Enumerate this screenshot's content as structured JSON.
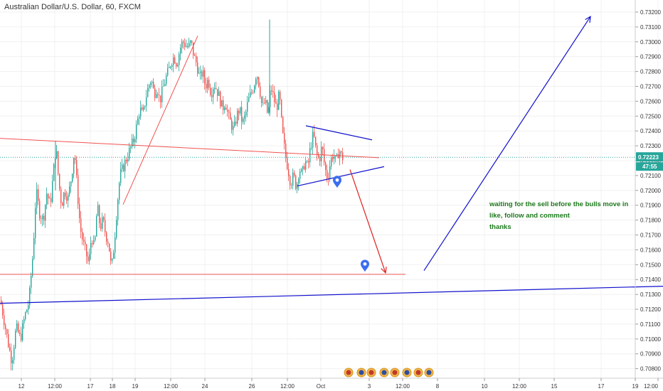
{
  "title": "Australian Dollar/U.S. Dollar, 60, FXCM",
  "note": {
    "line1": "waiting for the sell before the bulls move in",
    "line2": "like, follow and comment",
    "line3": "thanks"
  },
  "price_badge": {
    "price": "0.72223",
    "countdown": "47:55",
    "color": "#26a69a"
  },
  "colors": {
    "up": "#26a69a",
    "down": "#ef5350",
    "red_line": "#ef5350",
    "blue_line": "#1010cc",
    "arrow_red": "#e02020",
    "grid": "#f0f0f0",
    "axis": "#cccccc"
  },
  "chart_data": {
    "type": "candlestick",
    "symbol": "AUD/USD",
    "interval": "60",
    "source": "FXCM",
    "x_ticks": [
      "12",
      "12:00",
      "17",
      "18",
      "19",
      "12:00",
      "24",
      "26",
      "12:00",
      "Oct",
      "3",
      "12:00",
      "8",
      "10",
      "12:00",
      "15",
      "17",
      "19",
      "12:00"
    ],
    "y_ticks": [
      "0.73200",
      "0.73100",
      "0.73000",
      "0.72900",
      "0.72800",
      "0.72700",
      "0.72600",
      "0.72500",
      "0.72400",
      "0.72300",
      "0.72200",
      "0.72100",
      "0.72000",
      "0.71900",
      "0.71800",
      "0.71700",
      "0.71600",
      "0.71500",
      "0.71400",
      "0.71300",
      "0.71200",
      "0.71100",
      "0.71000",
      "0.70900",
      "0.70800"
    ],
    "ylim": [
      0.7076,
      0.7324
    ],
    "last_price": 0.72223,
    "close_path": [
      [
        0,
        0.7126
      ],
      [
        6,
        0.711
      ],
      [
        12,
        0.7094
      ],
      [
        16,
        0.7085
      ],
      [
        22,
        0.7108
      ],
      [
        28,
        0.71
      ],
      [
        34,
        0.7115
      ],
      [
        40,
        0.7125
      ],
      [
        46,
        0.716
      ],
      [
        50,
        0.72
      ],
      [
        55,
        0.7185
      ],
      [
        60,
        0.718
      ],
      [
        65,
        0.7198
      ],
      [
        70,
        0.719
      ],
      [
        74,
        0.721
      ],
      [
        78,
        0.723
      ],
      [
        82,
        0.7205
      ],
      [
        86,
        0.719
      ],
      [
        90,
        0.72
      ],
      [
        95,
        0.7195
      ],
      [
        100,
        0.721
      ],
      [
        104,
        0.7228
      ],
      [
        108,
        0.72
      ],
      [
        112,
        0.7175
      ],
      [
        116,
        0.7165
      ],
      [
        120,
        0.7158
      ],
      [
        124,
        0.715
      ],
      [
        128,
        0.717
      ],
      [
        132,
        0.716
      ],
      [
        136,
        0.719
      ],
      [
        140,
        0.7175
      ],
      [
        144,
        0.718
      ],
      [
        148,
        0.717
      ],
      [
        152,
        0.7165
      ],
      [
        156,
        0.7146
      ],
      [
        160,
        0.7165
      ],
      [
        164,
        0.719
      ],
      [
        168,
        0.721
      ],
      [
        172,
        0.7215
      ],
      [
        176,
        0.722
      ],
      [
        180,
        0.7225
      ],
      [
        184,
        0.723
      ],
      [
        188,
        0.7235
      ],
      [
        192,
        0.7245
      ],
      [
        196,
        0.7255
      ],
      [
        200,
        0.725
      ],
      [
        204,
        0.7262
      ],
      [
        208,
        0.727
      ],
      [
        212,
        0.7275
      ],
      [
        216,
        0.7265
      ],
      [
        220,
        0.727
      ],
      [
        224,
        0.726
      ],
      [
        228,
        0.7268
      ],
      [
        232,
        0.7275
      ],
      [
        236,
        0.728
      ],
      [
        240,
        0.7287
      ],
      [
        244,
        0.729
      ],
      [
        248,
        0.7285
      ],
      [
        252,
        0.7295
      ],
      [
        256,
        0.73
      ],
      [
        260,
        0.7298
      ],
      [
        264,
        0.7296
      ],
      [
        268,
        0.73
      ],
      [
        272,
        0.729
      ],
      [
        276,
        0.7285
      ],
      [
        280,
        0.7275
      ],
      [
        284,
        0.728
      ],
      [
        288,
        0.727
      ],
      [
        292,
        0.7275
      ],
      [
        296,
        0.7265
      ],
      [
        300,
        0.7272
      ],
      [
        304,
        0.7268
      ],
      [
        308,
        0.7262
      ],
      [
        312,
        0.7255
      ],
      [
        316,
        0.726
      ],
      [
        320,
        0.725
      ],
      [
        324,
        0.7245
      ],
      [
        328,
        0.724
      ],
      [
        332,
        0.725
      ],
      [
        336,
        0.7255
      ],
      [
        340,
        0.7245
      ],
      [
        344,
        0.725
      ],
      [
        348,
        0.726
      ],
      [
        352,
        0.7265
      ],
      [
        356,
        0.727
      ],
      [
        360,
        0.728
      ],
      [
        364,
        0.727
      ],
      [
        368,
        0.7255
      ],
      [
        372,
        0.726
      ],
      [
        376,
        0.725
      ],
      [
        380,
        0.727
      ],
      [
        384,
        0.7262
      ],
      [
        388,
        0.7255
      ],
      [
        392,
        0.7265
      ],
      [
        396,
        0.724
      ],
      [
        400,
        0.7225
      ],
      [
        404,
        0.7215
      ],
      [
        408,
        0.7205
      ],
      [
        412,
        0.721
      ],
      [
        416,
        0.7202
      ],
      [
        420,
        0.7215
      ],
      [
        424,
        0.721
      ],
      [
        428,
        0.722
      ],
      [
        432,
        0.7215
      ],
      [
        436,
        0.723
      ],
      [
        440,
        0.7238
      ],
      [
        444,
        0.7225
      ],
      [
        448,
        0.722
      ],
      [
        452,
        0.723
      ],
      [
        456,
        0.7215
      ],
      [
        460,
        0.7208
      ],
      [
        464,
        0.722
      ],
      [
        468,
        0.7225
      ],
      [
        472,
        0.7218
      ],
      [
        476,
        0.7228
      ],
      [
        480,
        0.7222
      ]
    ],
    "spikes": [
      {
        "x": 379,
        "high": 0.7315,
        "low": 0.725
      },
      {
        "x": 78,
        "high": 0.7233,
        "low": 0.72
      }
    ],
    "drawings": [
      {
        "type": "line",
        "color": "#ef5350",
        "width": 1,
        "p1": [
          0,
          0.7235
        ],
        "p2": [
          533,
          0.7222
        ]
      },
      {
        "type": "line",
        "color": "#ef5350",
        "width": 1,
        "p1": [
          0,
          0.71435
        ],
        "p2": [
          570,
          0.71435
        ]
      },
      {
        "type": "line",
        "color": "#ef5350",
        "width": 1,
        "p1": [
          173,
          0.71905
        ],
        "p2": [
          278,
          0.7304
        ]
      },
      {
        "type": "line",
        "color": "#1010cc",
        "width": 1.2,
        "p1": [
          0,
          0.7124
        ],
        "p2": [
          932,
          0.71355
        ]
      },
      {
        "type": "line",
        "color": "#1010cc",
        "width": 1.2,
        "p1": [
          430,
          0.72435
        ],
        "p2": [
          523,
          0.7234
        ]
      },
      {
        "type": "line",
        "color": "#1010cc",
        "width": 1.2,
        "p1": [
          418,
          0.7203
        ],
        "p2": [
          540,
          0.7216
        ]
      },
      {
        "type": "arrow",
        "color": "#e02020",
        "width": 1.2,
        "p1": [
          492,
          0.7214
        ],
        "p2": [
          542,
          0.71445
        ]
      },
      {
        "type": "arrow",
        "color": "#1010cc",
        "width": 1.2,
        "p1": [
          596,
          0.7146
        ],
        "p2": [
          830,
          0.7317
        ]
      }
    ],
    "markers": [
      {
        "type": "pin",
        "color": "#3a6df0",
        "x": 474,
        "y": 0.7206
      },
      {
        "type": "pin",
        "color": "#3a6df0",
        "x": 513,
        "y": 0.71495
      }
    ]
  }
}
